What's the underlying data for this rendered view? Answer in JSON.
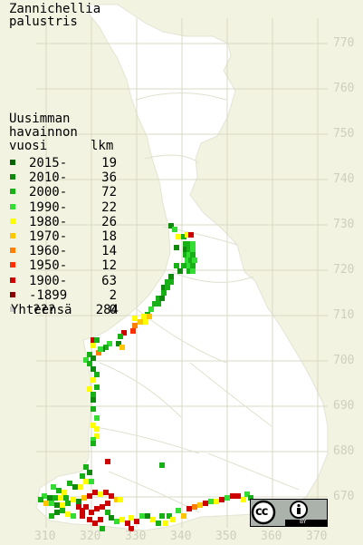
{
  "title": {
    "line1": "Zannichellia",
    "line2": "palustris"
  },
  "legend": {
    "heading1": "Uusimman",
    "heading2": "havainnon",
    "heading_year": "vuosi",
    "heading_count": "lkm",
    "items": [
      {
        "label": "2015-",
        "count": "19",
        "color": "#006400"
      },
      {
        "label": "2010-",
        "count": "36",
        "color": "#0f8a0f"
      },
      {
        "label": "2000-",
        "count": "72",
        "color": "#17b017"
      },
      {
        "label": "1990-",
        "count": "22",
        "color": "#33dd33"
      },
      {
        "label": "1980-",
        "count": "26",
        "color": "#ffff00"
      },
      {
        "label": "1970-",
        "count": "18",
        "color": "#ffc600"
      },
      {
        "label": "1960-",
        "count": "14",
        "color": "#ff8000"
      },
      {
        "label": "1950-",
        "count": "12",
        "color": "#ff3000"
      },
      {
        "label": "1900-",
        "count": "63",
        "color": "#cc0000"
      },
      {
        "label": "-1899",
        "count": "2",
        "color": "#880000"
      },
      {
        "label": "???",
        "count": "0",
        "color": "#c8c8c8"
      }
    ],
    "total_label": "Yhteensä",
    "total_count": "284"
  },
  "axes": {
    "y_ticks": [
      "770",
      "760",
      "750",
      "740",
      "730",
      "720",
      "710",
      "700",
      "690",
      "680",
      "670"
    ],
    "x_ticks": [
      "310",
      "320",
      "330",
      "340",
      "350",
      "360",
      "370"
    ]
  },
  "license": {
    "cc_text": "cc",
    "by_text": "BY"
  },
  "colors": {
    "background": "#f3f3e1",
    "land": "#ffffff",
    "grid": "#d8d8c4",
    "border": "#cfcfc0"
  }
}
